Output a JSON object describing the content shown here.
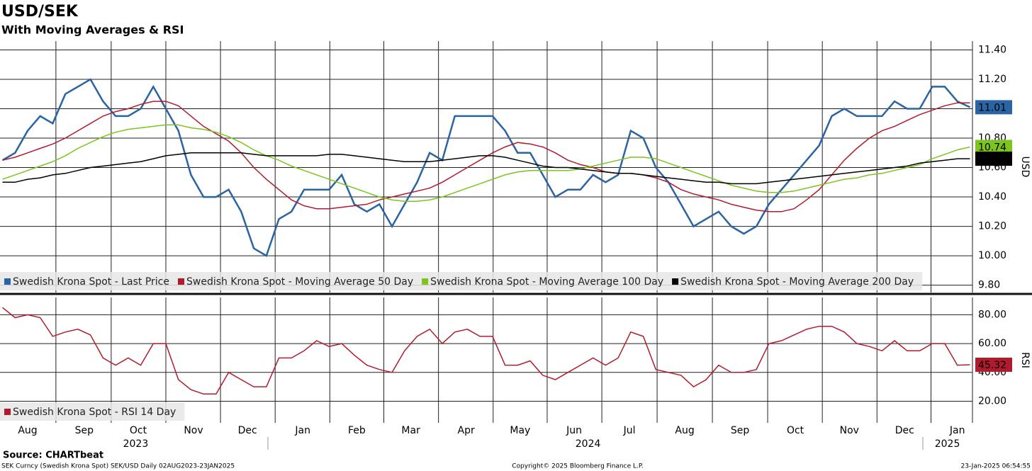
{
  "title": "USD/SEK",
  "subtitle": "With Moving Averages & RSI",
  "source": "Source: CHARTbeat",
  "footer": {
    "left": "SEK Curncy (Swedish Krona Spot) SEK/USD  Daily 02AUG2023-23JAN2025",
    "center": "Copyright© 2025 Bloomberg Finance L.P.",
    "right": "23-Jan-2025 06:54:55"
  },
  "chart_data": [
    {
      "type": "line",
      "ylabel": "USD",
      "xlim": [
        -0.2,
        77.2
      ],
      "ylim": [
        9.75,
        11.46
      ],
      "grid": true,
      "legend": "bottom-left",
      "yticks": [
        {
          "value": 9.8,
          "label": "9.80"
        },
        {
          "value": 10.0,
          "label": "10.00"
        },
        {
          "value": 10.2,
          "label": "10.20"
        },
        {
          "value": 10.4,
          "label": "10.40"
        },
        {
          "value": 10.6,
          "label": "10.60"
        },
        {
          "value": 10.8,
          "label": "10.80"
        },
        {
          "value": 11.0,
          "label": "11.00"
        },
        {
          "value": 11.2,
          "label": "11.20"
        },
        {
          "value": 11.4,
          "label": "11.40"
        }
      ],
      "series": [
        {
          "name": "Swedish Krona Spot - Last Price",
          "color": "#2a64a3",
          "last_label": true,
          "values": [
            10.65,
            10.7,
            10.85,
            10.95,
            10.9,
            11.1,
            11.15,
            11.2,
            11.05,
            10.95,
            10.95,
            11.0,
            11.15,
            11.0,
            10.85,
            10.55,
            10.4,
            10.4,
            10.45,
            10.3,
            10.05,
            10.0,
            10.25,
            10.3,
            10.45,
            10.45,
            10.45,
            10.55,
            10.35,
            10.3,
            10.35,
            10.2,
            10.35,
            10.5,
            10.7,
            10.65,
            10.95,
            10.95,
            10.95,
            10.95,
            10.85,
            10.7,
            10.7,
            10.55,
            10.4,
            10.45,
            10.45,
            10.55,
            10.5,
            10.55,
            10.85,
            10.8,
            10.6,
            10.5,
            10.35,
            10.2,
            10.25,
            10.3,
            10.2,
            10.15,
            10.2,
            10.35,
            10.45,
            10.55,
            10.65,
            10.75,
            10.95,
            11.0,
            10.95,
            10.95,
            10.95,
            11.05,
            11.0,
            11.0,
            11.15,
            11.15,
            11.05,
            11.01
          ]
        },
        {
          "name": "Swedish Krona Spot - Moving Average 50 Day",
          "color": "#b01c2e",
          "last_label": false,
          "values": [
            10.65,
            10.67,
            10.7,
            10.73,
            10.76,
            10.8,
            10.85,
            10.9,
            10.95,
            10.98,
            11.0,
            11.03,
            11.05,
            11.05,
            11.02,
            10.95,
            10.88,
            10.83,
            10.78,
            10.7,
            10.6,
            10.52,
            10.45,
            10.38,
            10.34,
            10.32,
            10.32,
            10.33,
            10.34,
            10.35,
            10.38,
            10.4,
            10.42,
            10.44,
            10.46,
            10.5,
            10.55,
            10.6,
            10.65,
            10.7,
            10.74,
            10.77,
            10.76,
            10.74,
            10.7,
            10.65,
            10.62,
            10.6,
            10.57,
            10.56,
            10.56,
            10.55,
            10.53,
            10.5,
            10.45,
            10.42,
            10.4,
            10.38,
            10.35,
            10.33,
            10.31,
            10.3,
            10.3,
            10.32,
            10.38,
            10.45,
            10.55,
            10.65,
            10.73,
            10.8,
            10.85,
            10.88,
            10.92,
            10.96,
            10.99,
            11.02,
            11.04,
            11.04
          ]
        },
        {
          "name": "Swedish Krona Spot - Moving Average 100 Day",
          "color": "#7cc41e",
          "last_label": true,
          "values": [
            10.52,
            10.55,
            10.58,
            10.61,
            10.64,
            10.68,
            10.73,
            10.77,
            10.81,
            10.84,
            10.86,
            10.87,
            10.88,
            10.89,
            10.89,
            10.87,
            10.86,
            10.84,
            10.81,
            10.77,
            10.72,
            10.68,
            10.65,
            10.61,
            10.58,
            10.55,
            10.52,
            10.49,
            10.46,
            10.43,
            10.4,
            10.38,
            10.37,
            10.37,
            10.38,
            10.4,
            10.43,
            10.46,
            10.49,
            10.52,
            10.55,
            10.57,
            10.58,
            10.58,
            10.58,
            10.58,
            10.59,
            10.61,
            10.63,
            10.65,
            10.67,
            10.67,
            10.66,
            10.63,
            10.6,
            10.57,
            10.54,
            10.51,
            10.48,
            10.46,
            10.44,
            10.43,
            10.43,
            10.44,
            10.46,
            10.48,
            10.5,
            10.52,
            10.53,
            10.55,
            10.56,
            10.58,
            10.6,
            10.62,
            10.66,
            10.69,
            10.72,
            10.74
          ]
        },
        {
          "name": "Swedish Krona Spot - Moving Average 200 Day",
          "color": "#000000",
          "last_label": true,
          "values": [
            10.5,
            10.5,
            10.52,
            10.53,
            10.55,
            10.56,
            10.58,
            10.6,
            10.61,
            10.62,
            10.63,
            10.64,
            10.66,
            10.68,
            10.69,
            10.7,
            10.7,
            10.7,
            10.7,
            10.7,
            10.69,
            10.68,
            10.68,
            10.68,
            10.68,
            10.68,
            10.69,
            10.69,
            10.68,
            10.67,
            10.66,
            10.65,
            10.64,
            10.64,
            10.64,
            10.65,
            10.66,
            10.67,
            10.68,
            10.68,
            10.67,
            10.65,
            10.63,
            10.61,
            10.6,
            10.6,
            10.59,
            10.58,
            10.57,
            10.56,
            10.56,
            10.55,
            10.54,
            10.53,
            10.52,
            10.51,
            10.5,
            10.5,
            10.49,
            10.49,
            10.49,
            10.5,
            10.51,
            10.52,
            10.53,
            10.54,
            10.55,
            10.56,
            10.57,
            10.58,
            10.59,
            10.6,
            10.61,
            10.63,
            10.64,
            10.65,
            10.66,
            10.66
          ]
        }
      ]
    },
    {
      "type": "line",
      "ylabel": "RSI",
      "xlim": [
        -0.2,
        77.2
      ],
      "ylim": [
        5,
        92
      ],
      "grid": true,
      "legend": "bottom-left",
      "yticks": [
        {
          "value": 20,
          "label": "20.00"
        },
        {
          "value": 40,
          "label": "40.00"
        },
        {
          "value": 60,
          "label": "60.00"
        },
        {
          "value": 80,
          "label": "80.00"
        }
      ],
      "xticks": [
        {
          "value": 2,
          "label": "Aug"
        },
        {
          "value": 6.5,
          "label": "Sep"
        },
        {
          "value": 10.8,
          "label": "Oct"
        },
        {
          "value": 15.2,
          "label": "Nov"
        },
        {
          "value": 19.5,
          "label": "Dec"
        },
        {
          "value": 23.9,
          "label": "Jan"
        },
        {
          "value": 28.2,
          "label": "Feb"
        },
        {
          "value": 32.5,
          "label": "Mar"
        },
        {
          "value": 36.9,
          "label": "Apr"
        },
        {
          "value": 41.2,
          "label": "May"
        },
        {
          "value": 45.5,
          "label": "Jun"
        },
        {
          "value": 49.9,
          "label": "Jul"
        },
        {
          "value": 54.3,
          "label": "Aug"
        },
        {
          "value": 58.7,
          "label": "Sep"
        },
        {
          "value": 63.1,
          "label": "Oct"
        },
        {
          "value": 67.4,
          "label": "Nov"
        },
        {
          "value": 71.8,
          "label": "Dec"
        },
        {
          "value": 76,
          "label": "Jan"
        }
      ],
      "year_ticks": [
        {
          "value": 10.6,
          "label": "2023"
        },
        {
          "value": 46.6,
          "label": "2024"
        },
        {
          "value": 75.2,
          "label": "2025"
        }
      ],
      "series": [
        {
          "name": "Swedish Krona Spot - RSI 14 Day",
          "color": "#b01c2e",
          "last_label": true,
          "values": [
            85,
            78,
            80,
            78,
            65,
            68,
            70,
            66,
            50,
            45,
            50,
            45,
            60,
            60,
            35,
            28,
            25,
            25,
            40,
            35,
            30,
            30,
            50,
            50,
            55,
            62,
            58,
            60,
            52,
            45,
            42,
            40,
            55,
            65,
            70,
            60,
            68,
            70,
            65,
            65,
            45,
            45,
            48,
            38,
            35,
            40,
            45,
            50,
            45,
            50,
            68,
            65,
            42,
            40,
            38,
            30,
            35,
            45,
            40,
            40,
            42,
            60,
            62,
            66,
            70,
            72,
            72,
            68,
            60,
            58,
            55,
            62,
            55,
            55,
            60,
            60,
            45,
            45.32
          ]
        }
      ]
    }
  ]
}
